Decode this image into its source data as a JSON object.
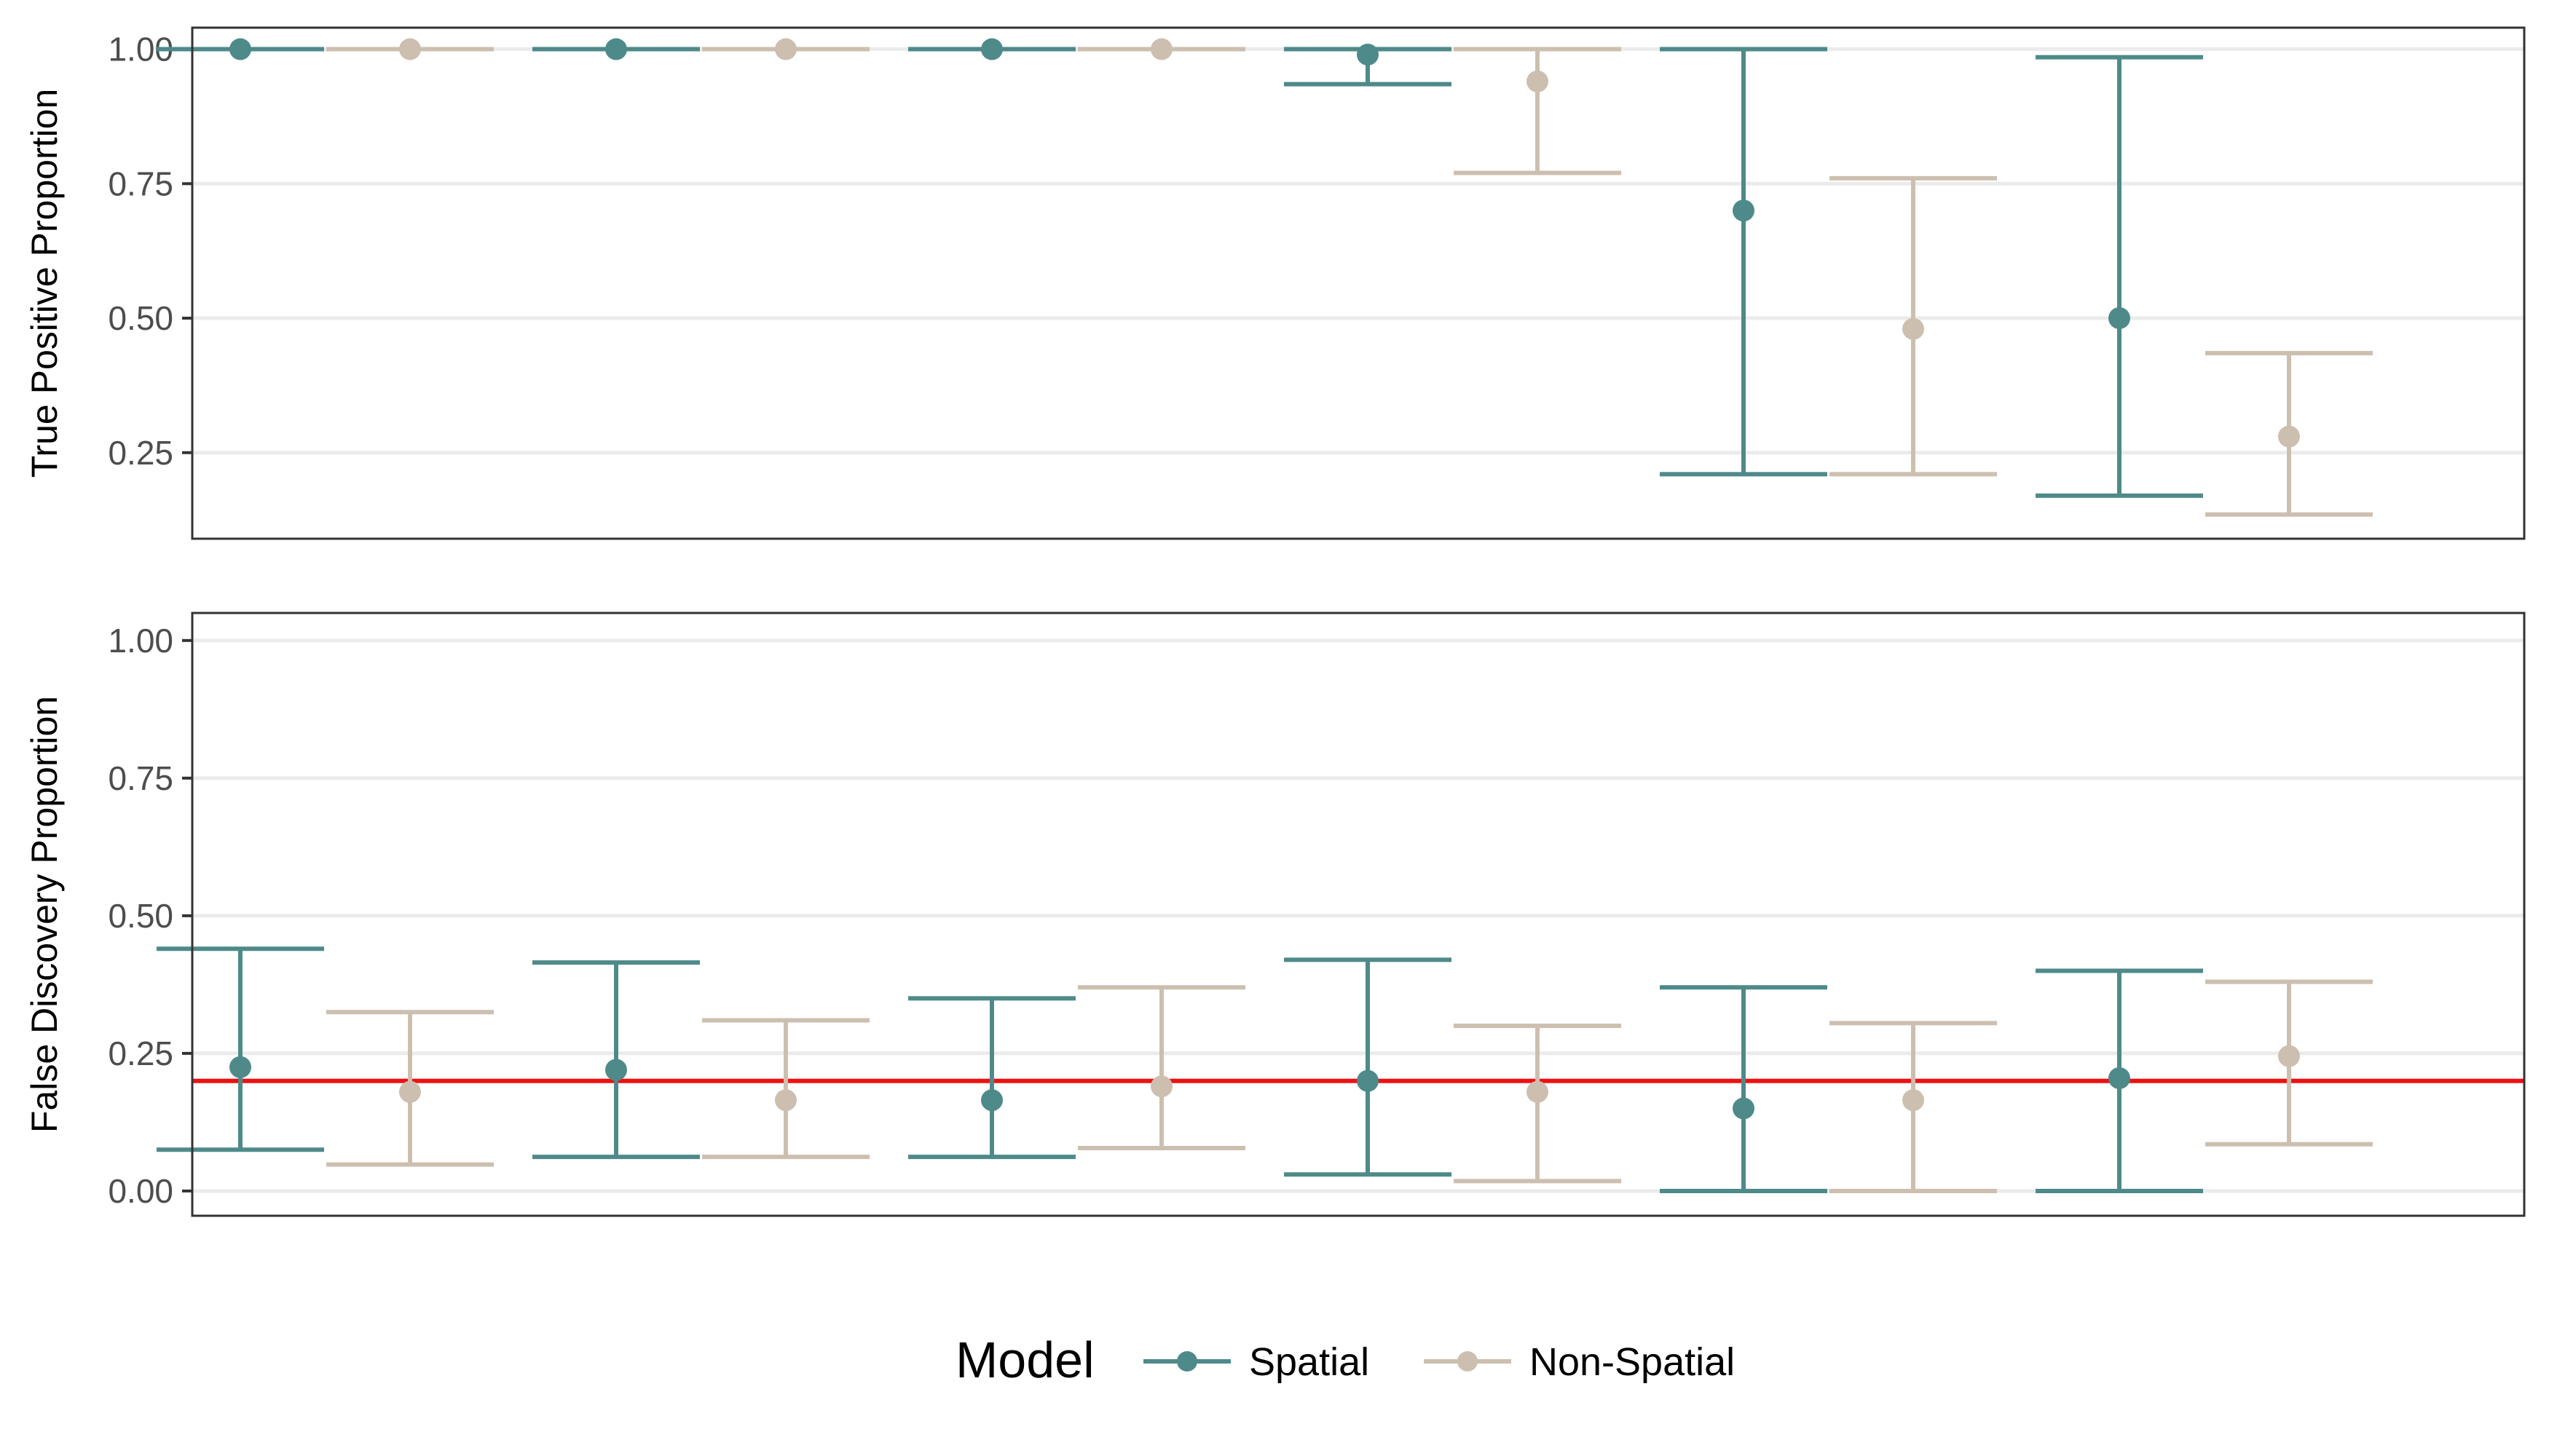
{
  "chart_data": {
    "type": "errorbar",
    "groups": 6,
    "models": [
      "Spatial",
      "Non-Spatial"
    ],
    "colors": {
      "Spatial": "#4e8a89",
      "Non-Spatial": "#cdbfaf",
      "reference_line": "#ee1111"
    },
    "panels": [
      {
        "ylabel": "True Positive Proportion",
        "ylim": [
          0.09,
          1.04
        ],
        "yticks": [
          0.25,
          0.5,
          0.75,
          1.0
        ],
        "ytick_labels": [
          "0.25",
          "0.50",
          "0.75",
          "1.00"
        ],
        "series": [
          {
            "name": "Spatial",
            "mean": [
              1.0,
              1.0,
              1.0,
              0.99,
              0.7,
              0.5
            ],
            "lower": [
              1.0,
              1.0,
              1.0,
              0.935,
              0.21,
              0.17
            ],
            "upper": [
              1.0,
              1.0,
              1.0,
              1.0,
              1.0,
              0.985
            ]
          },
          {
            "name": "Non-Spatial",
            "mean": [
              1.0,
              1.0,
              1.0,
              0.94,
              0.48,
              0.28
            ],
            "lower": [
              1.0,
              1.0,
              1.0,
              0.77,
              0.21,
              0.135
            ],
            "upper": [
              1.0,
              1.0,
              1.0,
              1.0,
              0.76,
              0.435
            ]
          }
        ]
      },
      {
        "ylabel": "False Discovery Proportion",
        "ylim": [
          -0.045,
          1.05
        ],
        "yticks": [
          0.0,
          0.25,
          0.5,
          0.75,
          1.0
        ],
        "ytick_labels": [
          "0.00",
          "0.25",
          "0.50",
          "0.75",
          "1.00"
        ],
        "reference_line": 0.2,
        "series": [
          {
            "name": "Spatial",
            "mean": [
              0.225,
              0.22,
              0.165,
              0.2,
              0.15,
              0.205
            ],
            "lower": [
              0.075,
              0.062,
              0.062,
              0.03,
              0.0,
              0.0
            ],
            "upper": [
              0.44,
              0.415,
              0.35,
              0.42,
              0.37,
              0.4
            ]
          },
          {
            "name": "Non-Spatial",
            "mean": [
              0.18,
              0.165,
              0.19,
              0.18,
              0.165,
              0.245
            ],
            "lower": [
              0.048,
              0.062,
              0.078,
              0.018,
              0.0,
              0.085
            ],
            "upper": [
              0.325,
              0.31,
              0.37,
              0.3,
              0.305,
              0.38
            ]
          }
        ]
      }
    ],
    "legend": {
      "title": "Model",
      "position": "bottom",
      "entries": [
        "Spatial",
        "Non-Spatial"
      ]
    }
  }
}
